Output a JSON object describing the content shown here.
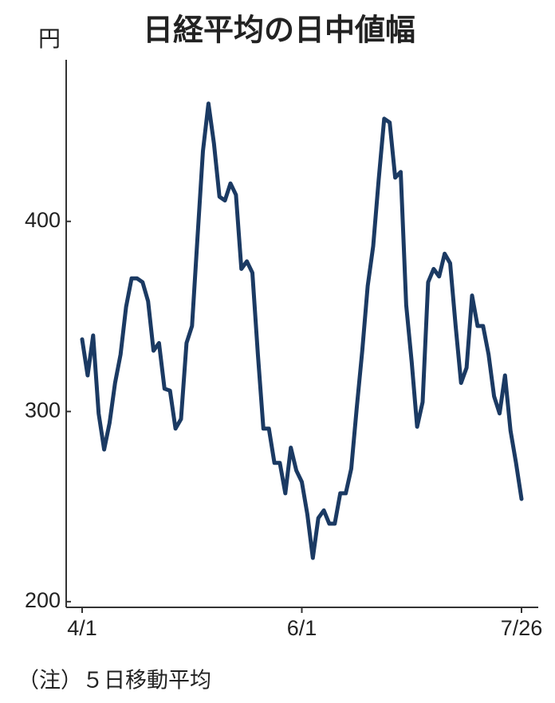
{
  "chart_data": {
    "type": "line",
    "title": "日経平均の日中値幅",
    "y_label": "円",
    "note": "（注）５日移動平均",
    "categories": [
      "4/1",
      null,
      null,
      null,
      null,
      null,
      null,
      null,
      null,
      null,
      null,
      null,
      null,
      null,
      null,
      null,
      null,
      null,
      null,
      null,
      null,
      null,
      null,
      null,
      null,
      null,
      null,
      null,
      null,
      null,
      null,
      null,
      null,
      null,
      null,
      null,
      null,
      null,
      null,
      null,
      "6/1",
      null,
      null,
      null,
      null,
      null,
      null,
      null,
      null,
      null,
      null,
      null,
      null,
      null,
      null,
      null,
      null,
      null,
      null,
      null,
      null,
      null,
      null,
      null,
      null,
      null,
      null,
      null,
      null,
      null,
      null,
      null,
      null,
      null,
      null,
      null,
      null,
      null,
      null,
      null,
      "7/26"
    ],
    "values": [
      338,
      319,
      340,
      299,
      280,
      294,
      315,
      330,
      355,
      370,
      370,
      368,
      358,
      332,
      336,
      312,
      311,
      291,
      296,
      336,
      345,
      391,
      437,
      462,
      441,
      413,
      411,
      420,
      414,
      375,
      379,
      373,
      330,
      291,
      291,
      273,
      273,
      257,
      281,
      269,
      263,
      246,
      223,
      244,
      248,
      241,
      241,
      257,
      257,
      270,
      302,
      332,
      366,
      387,
      422,
      454,
      452,
      423,
      426,
      356,
      326,
      292,
      305,
      368,
      375,
      371,
      383,
      378,
      345,
      315,
      323,
      361,
      345,
      345,
      330,
      308,
      299,
      319,
      290,
      273,
      254
    ],
    "color": "#1b3a63",
    "ylim": [
      197,
      485
    ],
    "yticks": [
      200,
      300,
      400
    ],
    "grid": false
  }
}
